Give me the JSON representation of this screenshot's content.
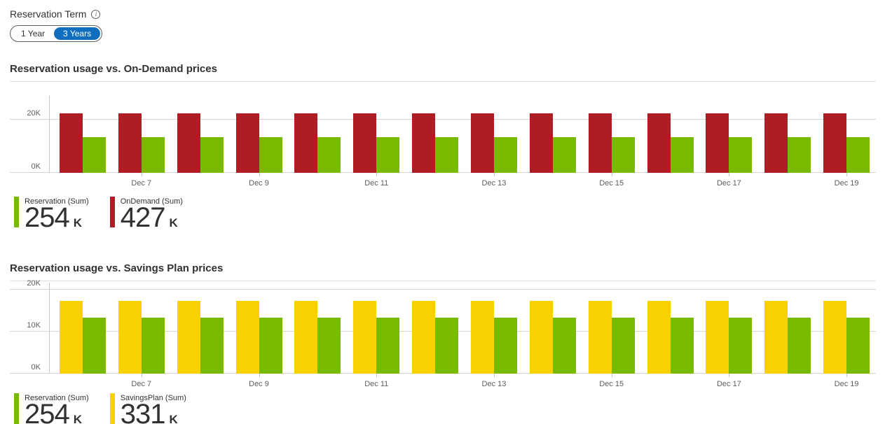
{
  "header": {
    "label": "Reservation Term",
    "info_icon": "i",
    "toggle": {
      "options": [
        "1 Year",
        "3 Years"
      ],
      "selected": "3 Years"
    }
  },
  "charts": [
    {
      "title": "Reservation usage vs. On-Demand prices",
      "legend": [
        {
          "name": "Reservation (Sum)",
          "value": "254",
          "suffix": "K"
        },
        {
          "name": "OnDemand (Sum)",
          "value": "427",
          "suffix": "K"
        }
      ]
    },
    {
      "title": "Reservation usage vs. Savings Plan prices",
      "legend": [
        {
          "name": "Reservation (Sum)",
          "value": "254",
          "suffix": "K"
        },
        {
          "name": "SavingsPlan (Sum)",
          "value": "331",
          "suffix": "K"
        }
      ]
    }
  ],
  "chart_data": [
    {
      "type": "bar",
      "title": "Reservation usage vs. On-Demand prices",
      "categories": [
        "Dec 6",
        "Dec 7",
        "Dec 8",
        "Dec 9",
        "Dec 10",
        "Dec 11",
        "Dec 12",
        "Dec 13",
        "Dec 14",
        "Dec 15",
        "Dec 16",
        "Dec 17",
        "Dec 18",
        "Dec 19"
      ],
      "x_tick_labels": [
        "Dec 7",
        "Dec 9",
        "Dec 11",
        "Dec 13",
        "Dec 15",
        "Dec 17",
        "Dec 19"
      ],
      "unit": "K",
      "series": [
        {
          "name": "OnDemand (Sum)",
          "color": "#ae1c24",
          "total": "427 K",
          "values": [
            22.5,
            22.5,
            22.5,
            22.5,
            22.5,
            22.5,
            22.5,
            22.5,
            22.5,
            22.5,
            22.5,
            22.5,
            22.5,
            22.5
          ]
        },
        {
          "name": "Reservation (Sum)",
          "color": "#78ba00",
          "total": "254 K",
          "values": [
            13.4,
            13.4,
            13.4,
            13.4,
            13.4,
            13.4,
            13.4,
            13.4,
            13.4,
            13.4,
            13.4,
            13.4,
            13.4,
            13.4
          ]
        }
      ],
      "yticks": [
        {
          "value": 0,
          "label": "0K"
        },
        {
          "value": 20,
          "label": "20K"
        }
      ],
      "ylim": [
        0,
        29
      ],
      "grid": true,
      "legend_position": "bottom-left"
    },
    {
      "type": "bar",
      "title": "Reservation usage vs. Savings Plan prices",
      "categories": [
        "Dec 6",
        "Dec 7",
        "Dec 8",
        "Dec 9",
        "Dec 10",
        "Dec 11",
        "Dec 12",
        "Dec 13",
        "Dec 14",
        "Dec 15",
        "Dec 16",
        "Dec 17",
        "Dec 18",
        "Dec 19"
      ],
      "x_tick_labels": [
        "Dec 7",
        "Dec 9",
        "Dec 11",
        "Dec 13",
        "Dec 15",
        "Dec 17",
        "Dec 19"
      ],
      "unit": "K",
      "series": [
        {
          "name": "SavingsPlan (Sum)",
          "color": "#f8d100",
          "total": "331 K",
          "values": [
            17.4,
            17.4,
            17.4,
            17.4,
            17.4,
            17.4,
            17.4,
            17.4,
            17.4,
            17.4,
            17.4,
            17.4,
            17.4,
            17.4
          ]
        },
        {
          "name": "Reservation (Sum)",
          "color": "#78ba00",
          "total": "254 K",
          "values": [
            13.4,
            13.4,
            13.4,
            13.4,
            13.4,
            13.4,
            13.4,
            13.4,
            13.4,
            13.4,
            13.4,
            13.4,
            13.4,
            13.4
          ]
        }
      ],
      "yticks": [
        {
          "value": 0,
          "label": "0K"
        },
        {
          "value": 10,
          "label": "10K"
        },
        {
          "value": 20,
          "label": "20K"
        }
      ],
      "ylim": [
        0,
        21.7
      ],
      "grid": true,
      "legend_position": "bottom-left"
    }
  ]
}
